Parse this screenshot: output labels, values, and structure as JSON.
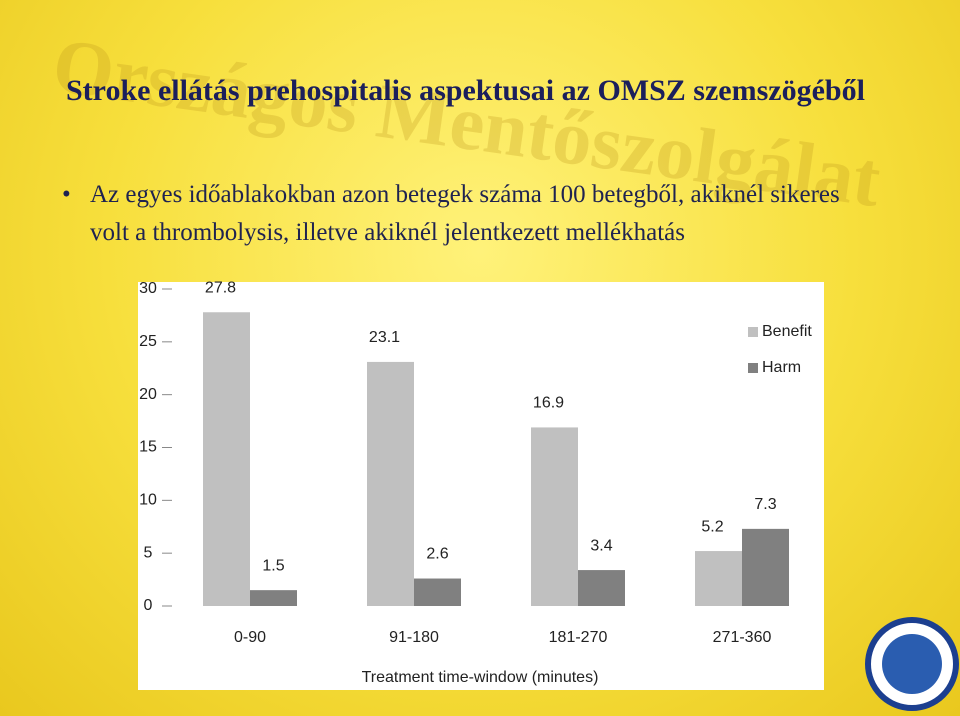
{
  "watermark": "Országos Mentőszolgálat",
  "title": "Stroke ellátás prehospitalis aspektusai az OMSZ szemszögéből",
  "bullet": "Az egyes időablakokban azon betegek száma 100 betegből, akiknél sikeres volt a thrombolysis, illetve akiknél jelentkezett mellékhatás",
  "chart_data": {
    "type": "bar",
    "categories": [
      "0-90",
      "91-180",
      "181-270",
      "271-360"
    ],
    "series": [
      {
        "name": "Benefit",
        "color": "#c0c0c0",
        "values": [
          27.8,
          23.1,
          16.9,
          5.2
        ]
      },
      {
        "name": "Harm",
        "color": "#808080",
        "values": [
          1.5,
          2.6,
          3.4,
          7.3
        ]
      }
    ],
    "x_label": "Treatment time-window (minutes)",
    "ylim": [
      0,
      30
    ],
    "yticks": [
      0,
      5,
      10,
      15,
      20,
      25,
      30
    ],
    "legend": "right"
  }
}
